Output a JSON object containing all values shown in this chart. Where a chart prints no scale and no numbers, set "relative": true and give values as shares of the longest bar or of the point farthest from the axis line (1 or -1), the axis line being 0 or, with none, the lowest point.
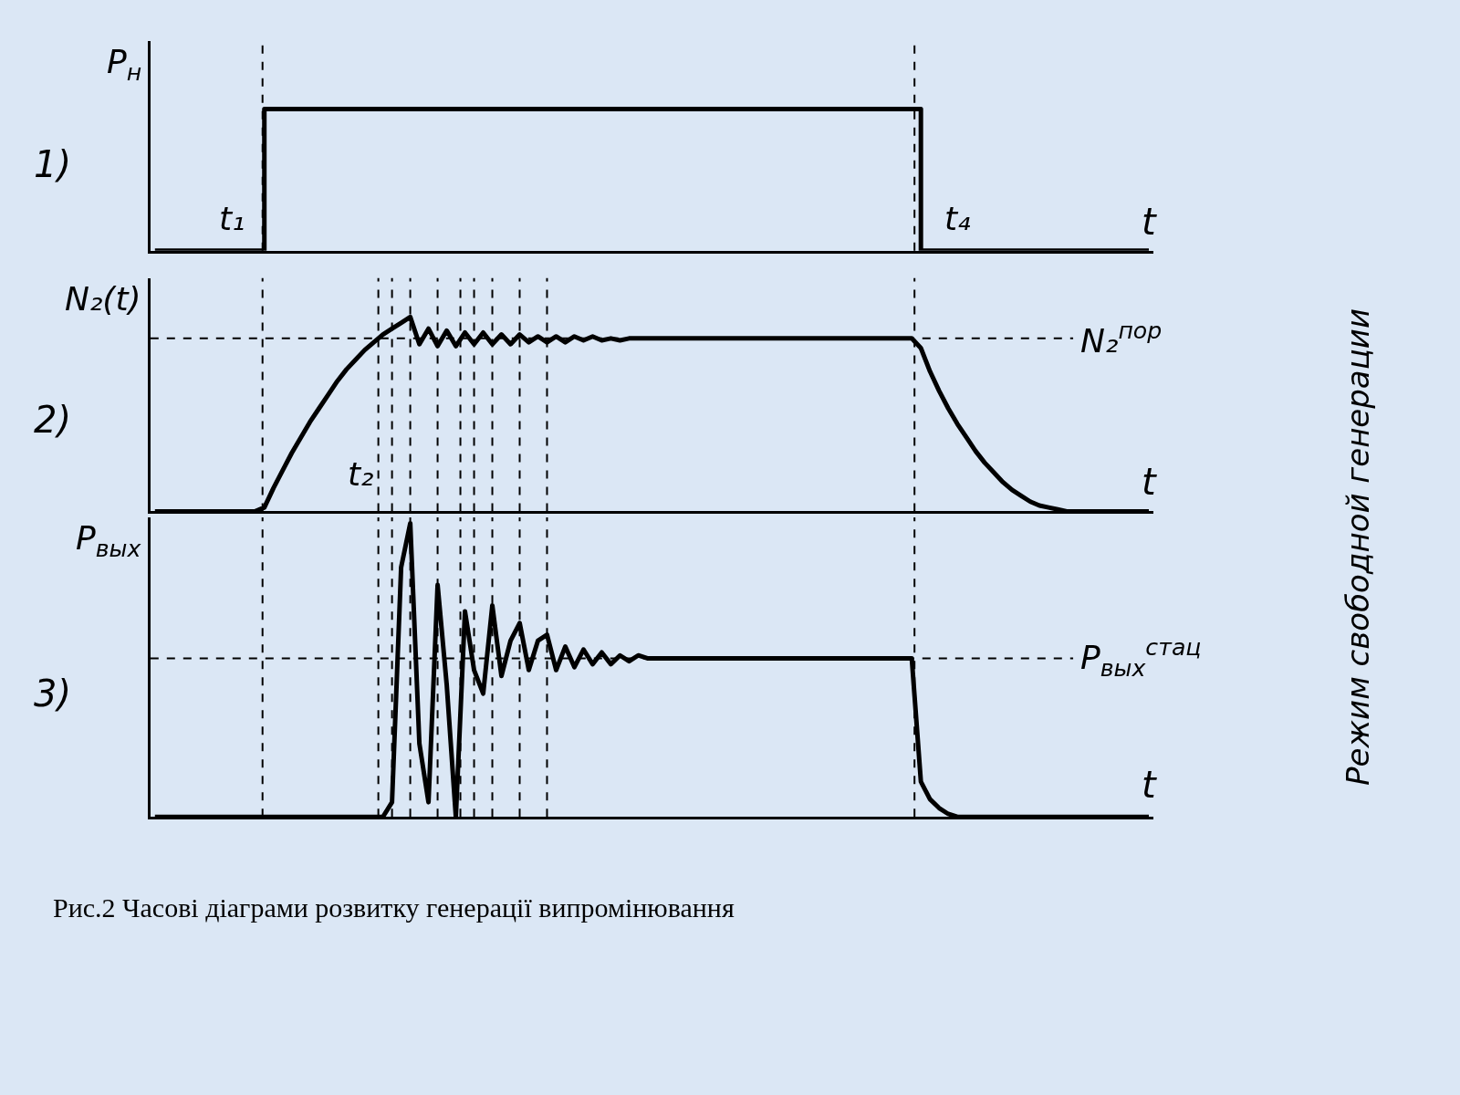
{
  "chart_data": [
    {
      "type": "step",
      "relative": true,
      "grid": "x",
      "xlabel": "t",
      "ylabel": "P$_{н}$",
      "annotations": [
        "1)",
        "t₁",
        "t₄"
      ],
      "categories": [
        null,
        null,
        null,
        null,
        null,
        null,
        null,
        null,
        null,
        null,
        null,
        null,
        null,
        null,
        null,
        null,
        null,
        null,
        null,
        null,
        null,
        null,
        null,
        null,
        null,
        null,
        null,
        null,
        null,
        null,
        null,
        null,
        null,
        null,
        null,
        null,
        null,
        null,
        null,
        null,
        null,
        null,
        null,
        null,
        null,
        null,
        null,
        null,
        null,
        null,
        null,
        null,
        null,
        null,
        null,
        null,
        null,
        null,
        null,
        null,
        null,
        null,
        null,
        null,
        null,
        null,
        null,
        null,
        null,
        null,
        null,
        null,
        null,
        null,
        null,
        null,
        null,
        null,
        null,
        null,
        null,
        null,
        null,
        null,
        null,
        null,
        null,
        null,
        null,
        null,
        null,
        null,
        null,
        null,
        null,
        null,
        null,
        null,
        null,
        null,
        null,
        null,
        null,
        null,
        null,
        null,
        null,
        null,
        null,
        null
      ],
      "series": [
        {
          "color": "#000000",
          "values": [
            0,
            0,
            0,
            0,
            0,
            0,
            0,
            0,
            0,
            0,
            0,
            0,
            1,
            1,
            1,
            1,
            1,
            1,
            1,
            1,
            1,
            1,
            1,
            1,
            1,
            1,
            1,
            1,
            1,
            1,
            1,
            1,
            1,
            1,
            1,
            1,
            1,
            1,
            1,
            1,
            1,
            1,
            1,
            1,
            1,
            1,
            1,
            1,
            1,
            1,
            1,
            1,
            1,
            1,
            1,
            1,
            1,
            1,
            1,
            1,
            1,
            1,
            1,
            1,
            1,
            1,
            1,
            1,
            1,
            1,
            1,
            1,
            1,
            1,
            1,
            1,
            1,
            1,
            1,
            1,
            1,
            1,
            1,
            1,
            0,
            0,
            0,
            0,
            0,
            0,
            0,
            0,
            0,
            0,
            0,
            0,
            0,
            0,
            0,
            0,
            0,
            0,
            0,
            0,
            0,
            0,
            0,
            0,
            0,
            0
          ]
        }
      ]
    },
    {
      "type": "line",
      "relative": true,
      "grid": "x",
      "xlabel": "t",
      "ylabel": "N₂(t)",
      "annotations": [
        "2)",
        "t₂"
      ],
      "categories": [
        null,
        null,
        null,
        null,
        null,
        null,
        null,
        null,
        null,
        null,
        null,
        null,
        null,
        null,
        null,
        null,
        null,
        null,
        null,
        null,
        null,
        null,
        null,
        null,
        null,
        null,
        null,
        null,
        null,
        null,
        null,
        null,
        null,
        null,
        null,
        null,
        null,
        null,
        null,
        null,
        null,
        null,
        null,
        null,
        null,
        null,
        null,
        null,
        null,
        null,
        null,
        null,
        null,
        null,
        null,
        null,
        null,
        null,
        null,
        null,
        null,
        null,
        null,
        null,
        null,
        null,
        null,
        null,
        null,
        null,
        null,
        null,
        null,
        null,
        null,
        null,
        null,
        null,
        null,
        null,
        null,
        null,
        null,
        null,
        null,
        null,
        null,
        null,
        null,
        null,
        null,
        null,
        null,
        null,
        null,
        null,
        null,
        null,
        null,
        null,
        null,
        null,
        null,
        null,
        null,
        null,
        null,
        null,
        null,
        null
      ],
      "series": [
        {
          "color": "#000000",
          "values": [
            0,
            0,
            0,
            0,
            0,
            0,
            0,
            0,
            0,
            0,
            0,
            0,
            0.02,
            0.12,
            0.21,
            0.3,
            0.38,
            0.46,
            0.53,
            0.6,
            0.67,
            0.73,
            0.78,
            0.83,
            0.87,
            0.91,
            0.94,
            0.97,
            1,
            0.86,
            0.94,
            0.85,
            0.93,
            0.85,
            0.92,
            0.86,
            0.92,
            0.86,
            0.91,
            0.86,
            0.91,
            0.87,
            0.9,
            0.87,
            0.9,
            0.87,
            0.9,
            0.88,
            0.9,
            0.88,
            0.89,
            0.88,
            0.89,
            0.89,
            0.89,
            0.89,
            0.89,
            0.89,
            0.89,
            0.89,
            0.89,
            0.89,
            0.89,
            0.89,
            0.89,
            0.89,
            0.89,
            0.89,
            0.89,
            0.89,
            0.89,
            0.89,
            0.89,
            0.89,
            0.89,
            0.89,
            0.89,
            0.89,
            0.89,
            0.89,
            0.89,
            0.89,
            0.89,
            0.89,
            0.84,
            0.72,
            0.62,
            0.53,
            0.45,
            0.38,
            0.31,
            0.25,
            0.2,
            0.15,
            0.11,
            0.08,
            0.05,
            0.03,
            0.02,
            0.01,
            0,
            0,
            0,
            0,
            0,
            0,
            0,
            0,
            0,
            0
          ]
        }
      ],
      "ref_lines": [
        {
          "axis": "y",
          "value": 0.89,
          "label": "N₂$^{пор}$",
          "line_style": "dashed",
          "color": "#000000"
        }
      ]
    },
    {
      "type": "line",
      "relative": true,
      "grid": "x",
      "xlabel": "t",
      "ylabel": "P$_{вых}$",
      "annotations": [
        "3)",
        "Режим свободной генерации",
        "Рис.2 Часові діаграми розвитку генерації випромінювання"
      ],
      "categories": [
        null,
        null,
        null,
        null,
        null,
        null,
        null,
        null,
        null,
        null,
        null,
        null,
        null,
        null,
        null,
        null,
        null,
        null,
        null,
        null,
        null,
        null,
        null,
        null,
        null,
        null,
        null,
        null,
        null,
        null,
        null,
        null,
        null,
        null,
        null,
        null,
        null,
        null,
        null,
        null,
        null,
        null,
        null,
        null,
        null,
        null,
        null,
        null,
        null,
        null,
        null,
        null,
        null,
        null,
        null,
        null,
        null,
        null,
        null,
        null,
        null,
        null,
        null,
        null,
        null,
        null,
        null,
        null,
        null,
        null,
        null,
        null,
        null,
        null,
        null,
        null,
        null,
        null,
        null,
        null,
        null,
        null,
        null,
        null,
        null,
        null,
        null,
        null,
        null,
        null,
        null,
        null,
        null,
        null,
        null,
        null,
        null,
        null,
        null,
        null,
        null,
        null,
        null,
        null,
        null,
        null,
        null,
        null,
        null,
        null
      ],
      "series": [
        {
          "color": "#000000",
          "values": [
            0,
            0,
            0,
            0,
            0,
            0,
            0,
            0,
            0,
            0,
            0,
            0,
            0,
            0,
            0,
            0,
            0,
            0,
            0,
            0,
            0,
            0,
            0,
            0,
            0,
            0,
            0.05,
            0.85,
            1,
            0.25,
            0.05,
            0.79,
            0.45,
            0,
            0.7,
            0.5,
            0.42,
            0.72,
            0.48,
            0.6,
            0.66,
            0.5,
            0.6,
            0.62,
            0.5,
            0.58,
            0.51,
            0.57,
            0.52,
            0.56,
            0.52,
            0.55,
            0.53,
            0.55,
            0.54,
            0.54,
            0.54,
            0.54,
            0.54,
            0.54,
            0.54,
            0.54,
            0.54,
            0.54,
            0.54,
            0.54,
            0.54,
            0.54,
            0.54,
            0.54,
            0.54,
            0.54,
            0.54,
            0.54,
            0.54,
            0.54,
            0.54,
            0.54,
            0.54,
            0.54,
            0.54,
            0.54,
            0.54,
            0.54,
            0.12,
            0.06,
            0.03,
            0.01,
            0,
            0,
            0,
            0,
            0,
            0,
            0,
            0,
            0,
            0,
            0,
            0,
            0,
            0,
            0,
            0,
            0,
            0,
            0,
            0,
            0,
            0
          ]
        }
      ],
      "ref_lines": [
        {
          "axis": "y",
          "value": 0.54,
          "label": "P$_{вых}$$^{стац}$",
          "line_style": "dashed",
          "color": "#000000"
        }
      ]
    }
  ]
}
